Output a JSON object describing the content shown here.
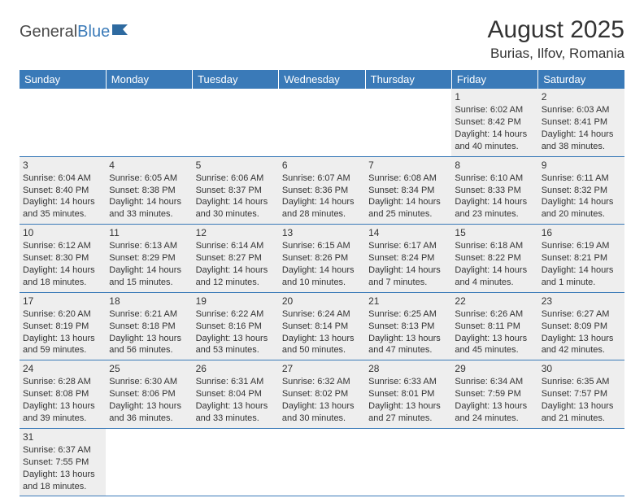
{
  "logo": {
    "general": "General",
    "blue": "Blue"
  },
  "title": "August 2025",
  "location": "Burias, Ilfov, Romania",
  "colors": {
    "header_bg": "#3a7ab8",
    "header_text": "#ffffff",
    "cell_bg": "#eeeeee",
    "border": "#3a7ab8",
    "text": "#333333"
  },
  "weekdays": [
    "Sunday",
    "Monday",
    "Tuesday",
    "Wednesday",
    "Thursday",
    "Friday",
    "Saturday"
  ],
  "weeks": [
    [
      null,
      null,
      null,
      null,
      null,
      {
        "n": "1",
        "sr": "Sunrise: 6:02 AM",
        "ss": "Sunset: 8:42 PM",
        "dl": "Daylight: 14 hours and 40 minutes."
      },
      {
        "n": "2",
        "sr": "Sunrise: 6:03 AM",
        "ss": "Sunset: 8:41 PM",
        "dl": "Daylight: 14 hours and 38 minutes."
      }
    ],
    [
      {
        "n": "3",
        "sr": "Sunrise: 6:04 AM",
        "ss": "Sunset: 8:40 PM",
        "dl": "Daylight: 14 hours and 35 minutes."
      },
      {
        "n": "4",
        "sr": "Sunrise: 6:05 AM",
        "ss": "Sunset: 8:38 PM",
        "dl": "Daylight: 14 hours and 33 minutes."
      },
      {
        "n": "5",
        "sr": "Sunrise: 6:06 AM",
        "ss": "Sunset: 8:37 PM",
        "dl": "Daylight: 14 hours and 30 minutes."
      },
      {
        "n": "6",
        "sr": "Sunrise: 6:07 AM",
        "ss": "Sunset: 8:36 PM",
        "dl": "Daylight: 14 hours and 28 minutes."
      },
      {
        "n": "7",
        "sr": "Sunrise: 6:08 AM",
        "ss": "Sunset: 8:34 PM",
        "dl": "Daylight: 14 hours and 25 minutes."
      },
      {
        "n": "8",
        "sr": "Sunrise: 6:10 AM",
        "ss": "Sunset: 8:33 PM",
        "dl": "Daylight: 14 hours and 23 minutes."
      },
      {
        "n": "9",
        "sr": "Sunrise: 6:11 AM",
        "ss": "Sunset: 8:32 PM",
        "dl": "Daylight: 14 hours and 20 minutes."
      }
    ],
    [
      {
        "n": "10",
        "sr": "Sunrise: 6:12 AM",
        "ss": "Sunset: 8:30 PM",
        "dl": "Daylight: 14 hours and 18 minutes."
      },
      {
        "n": "11",
        "sr": "Sunrise: 6:13 AM",
        "ss": "Sunset: 8:29 PM",
        "dl": "Daylight: 14 hours and 15 minutes."
      },
      {
        "n": "12",
        "sr": "Sunrise: 6:14 AM",
        "ss": "Sunset: 8:27 PM",
        "dl": "Daylight: 14 hours and 12 minutes."
      },
      {
        "n": "13",
        "sr": "Sunrise: 6:15 AM",
        "ss": "Sunset: 8:26 PM",
        "dl": "Daylight: 14 hours and 10 minutes."
      },
      {
        "n": "14",
        "sr": "Sunrise: 6:17 AM",
        "ss": "Sunset: 8:24 PM",
        "dl": "Daylight: 14 hours and 7 minutes."
      },
      {
        "n": "15",
        "sr": "Sunrise: 6:18 AM",
        "ss": "Sunset: 8:22 PM",
        "dl": "Daylight: 14 hours and 4 minutes."
      },
      {
        "n": "16",
        "sr": "Sunrise: 6:19 AM",
        "ss": "Sunset: 8:21 PM",
        "dl": "Daylight: 14 hours and 1 minute."
      }
    ],
    [
      {
        "n": "17",
        "sr": "Sunrise: 6:20 AM",
        "ss": "Sunset: 8:19 PM",
        "dl": "Daylight: 13 hours and 59 minutes."
      },
      {
        "n": "18",
        "sr": "Sunrise: 6:21 AM",
        "ss": "Sunset: 8:18 PM",
        "dl": "Daylight: 13 hours and 56 minutes."
      },
      {
        "n": "19",
        "sr": "Sunrise: 6:22 AM",
        "ss": "Sunset: 8:16 PM",
        "dl": "Daylight: 13 hours and 53 minutes."
      },
      {
        "n": "20",
        "sr": "Sunrise: 6:24 AM",
        "ss": "Sunset: 8:14 PM",
        "dl": "Daylight: 13 hours and 50 minutes."
      },
      {
        "n": "21",
        "sr": "Sunrise: 6:25 AM",
        "ss": "Sunset: 8:13 PM",
        "dl": "Daylight: 13 hours and 47 minutes."
      },
      {
        "n": "22",
        "sr": "Sunrise: 6:26 AM",
        "ss": "Sunset: 8:11 PM",
        "dl": "Daylight: 13 hours and 45 minutes."
      },
      {
        "n": "23",
        "sr": "Sunrise: 6:27 AM",
        "ss": "Sunset: 8:09 PM",
        "dl": "Daylight: 13 hours and 42 minutes."
      }
    ],
    [
      {
        "n": "24",
        "sr": "Sunrise: 6:28 AM",
        "ss": "Sunset: 8:08 PM",
        "dl": "Daylight: 13 hours and 39 minutes."
      },
      {
        "n": "25",
        "sr": "Sunrise: 6:30 AM",
        "ss": "Sunset: 8:06 PM",
        "dl": "Daylight: 13 hours and 36 minutes."
      },
      {
        "n": "26",
        "sr": "Sunrise: 6:31 AM",
        "ss": "Sunset: 8:04 PM",
        "dl": "Daylight: 13 hours and 33 minutes."
      },
      {
        "n": "27",
        "sr": "Sunrise: 6:32 AM",
        "ss": "Sunset: 8:02 PM",
        "dl": "Daylight: 13 hours and 30 minutes."
      },
      {
        "n": "28",
        "sr": "Sunrise: 6:33 AM",
        "ss": "Sunset: 8:01 PM",
        "dl": "Daylight: 13 hours and 27 minutes."
      },
      {
        "n": "29",
        "sr": "Sunrise: 6:34 AM",
        "ss": "Sunset: 7:59 PM",
        "dl": "Daylight: 13 hours and 24 minutes."
      },
      {
        "n": "30",
        "sr": "Sunrise: 6:35 AM",
        "ss": "Sunset: 7:57 PM",
        "dl": "Daylight: 13 hours and 21 minutes."
      }
    ],
    [
      {
        "n": "31",
        "sr": "Sunrise: 6:37 AM",
        "ss": "Sunset: 7:55 PM",
        "dl": "Daylight: 13 hours and 18 minutes."
      },
      null,
      null,
      null,
      null,
      null,
      null
    ]
  ]
}
